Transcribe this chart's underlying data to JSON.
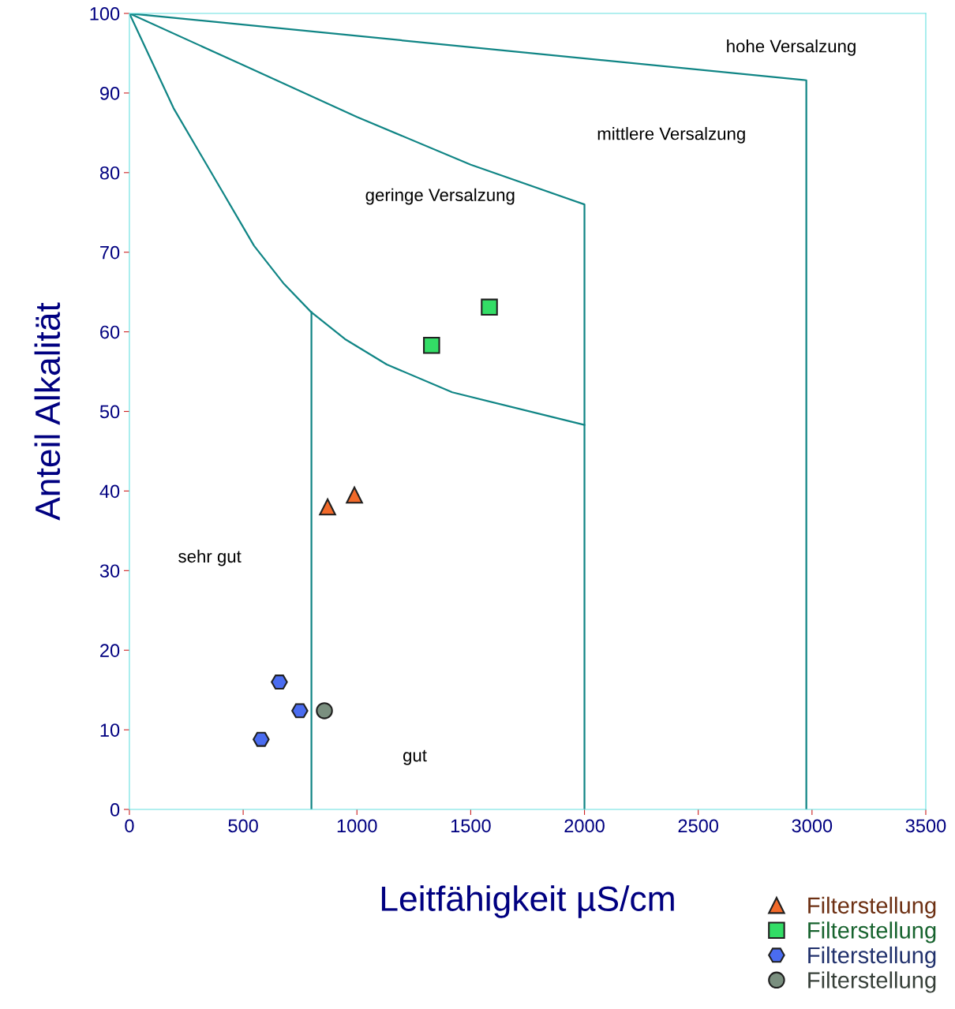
{
  "chart_data": {
    "type": "scatter",
    "xlabel": "Leitfähigkeit µS/cm",
    "ylabel": "Anteil Alkalität",
    "xlim": [
      0,
      3500
    ],
    "xticks": [
      0,
      500,
      1000,
      1500,
      2000,
      2500,
      3000,
      3500
    ],
    "ylim": [
      0,
      100
    ],
    "yticks": [
      0,
      10,
      20,
      30,
      40,
      50,
      60,
      70,
      80,
      90,
      100
    ],
    "grid": false,
    "legend": "bottom right",
    "series": [
      {
        "type": "line",
        "color": "#108585",
        "marker": "none",
        "x": [
          0,
          2975,
          2975
        ],
        "values": [
          100,
          91.6,
          0
        ]
      },
      {
        "type": "line",
        "color": "#108585",
        "marker": "none",
        "x": [
          0,
          500,
          1000,
          1500,
          2000,
          2000
        ],
        "values": [
          100,
          93.5,
          87,
          81,
          76,
          0
        ]
      },
      {
        "type": "line",
        "color": "#108585",
        "marker": "none",
        "x": [
          0,
          194,
          413,
          548,
          680,
          798,
          947,
          1131,
          1419,
          2000
        ],
        "values": [
          100,
          88.1,
          77.4,
          70.8,
          66,
          62.5,
          59.1,
          55.9,
          52.4,
          48.3
        ]
      },
      {
        "type": "line",
        "color": "#108585",
        "marker": "none",
        "x": [
          800,
          800
        ],
        "values": [
          62.5,
          0
        ]
      },
      {
        "name": "Filterstellung",
        "color": "#f26a2a",
        "marker": "triangle",
        "x": [
          871,
          989
        ],
        "values": [
          38,
          39.5
        ]
      },
      {
        "name": "Filterstellung",
        "color": "#33dd66",
        "marker": "square",
        "x": [
          1328,
          1582
        ],
        "values": [
          58.3,
          63.1
        ]
      },
      {
        "name": "Filterstellung",
        "color": "#4a6cf0",
        "x": [
          659,
          749,
          579
        ],
        "values": [
          16,
          12.4,
          8.8
        ]
      },
      {
        "name": "Filterstellung",
        "color": "#7a8f7f",
        "marker": "circle",
        "x": [
          857
        ],
        "values": [
          12.4
        ]
      }
    ],
    "annotations": [
      "hohe Versalzung",
      "mittlere Versalzung",
      "geringe Versalzung",
      "sehr gut",
      "gut"
    ]
  }
}
